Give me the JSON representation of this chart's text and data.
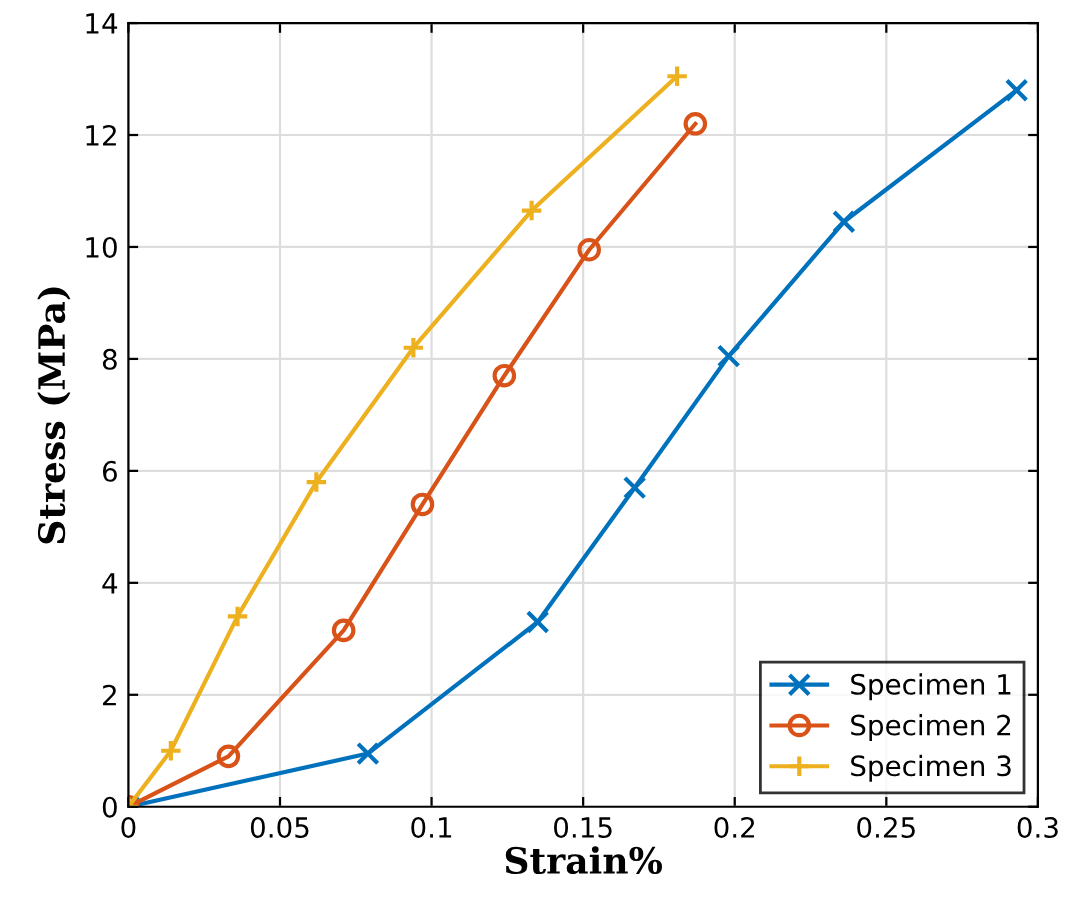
{
  "chart_data": {
    "type": "line",
    "xlabel": "Strain%",
    "ylabel": "Stress (MPa)",
    "xlim": [
      0,
      0.3
    ],
    "ylim": [
      0,
      14
    ],
    "xticks": [
      0,
      0.05,
      0.1,
      0.15,
      0.2,
      0.25,
      0.3
    ],
    "yticks": [
      0,
      2,
      4,
      6,
      8,
      10,
      12,
      14
    ],
    "grid": true,
    "legend": "bottom right",
    "line_style": "solid",
    "series": [
      {
        "name": "Specimen 1",
        "color": "#0072bd",
        "marker": "cross",
        "x": [
          0,
          0.079,
          0.135,
          0.167,
          0.198,
          0.236,
          0.293
        ],
        "values": [
          0,
          0.95,
          3.3,
          5.7,
          8.05,
          10.45,
          12.8
        ]
      },
      {
        "name": "Specimen 2",
        "color": "#d95319",
        "marker": "circle",
        "x": [
          0,
          0.033,
          0.071,
          0.097,
          0.124,
          0.152,
          0.187
        ],
        "values": [
          0,
          0.9,
          3.15,
          5.4,
          7.7,
          9.95,
          12.2
        ]
      },
      {
        "name": "Specimen 3",
        "color": "#edb120",
        "marker": "plus",
        "x": [
          0,
          0.014,
          0.036,
          0.062,
          0.094,
          0.133,
          0.181
        ],
        "values": [
          0,
          1.0,
          3.4,
          5.8,
          8.2,
          10.65,
          13.05
        ]
      }
    ]
  }
}
